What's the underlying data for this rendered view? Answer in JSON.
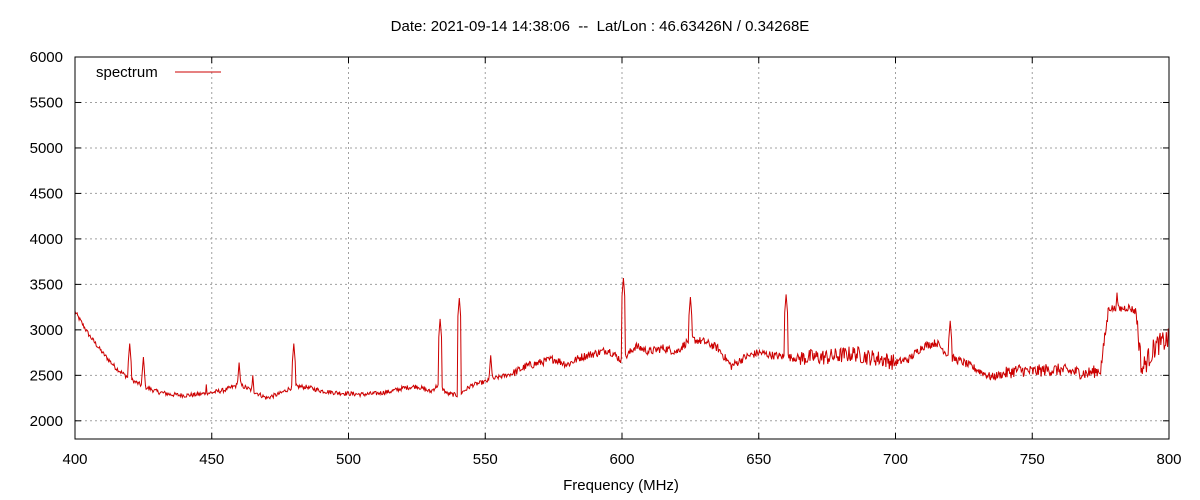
{
  "chart_data": {
    "type": "line",
    "title": "Date: 2021-09-14 14:38:06  --  Lat/Lon : 46.63426N / 0.34268E",
    "xlabel": "Frequency (MHz)",
    "ylabel": "",
    "xlim": [
      400,
      800
    ],
    "ylim": [
      1800,
      6000
    ],
    "xticks": [
      400,
      450,
      500,
      550,
      600,
      650,
      700,
      750,
      800
    ],
    "yticks": [
      2000,
      2500,
      3000,
      3500,
      4000,
      4500,
      5000,
      5500,
      6000
    ],
    "grid": true,
    "legend_position": "top-left",
    "series": [
      {
        "name": "spectrum",
        "color": "#cc0000",
        "x": [
          400,
          405,
          410,
          415,
          420,
          425,
          430,
          435,
          440,
          445,
          450,
          455,
          460,
          465,
          470,
          475,
          480,
          485,
          490,
          495,
          500,
          505,
          510,
          515,
          520,
          525,
          530,
          533,
          536,
          540,
          545,
          550,
          555,
          560,
          565,
          570,
          575,
          580,
          585,
          590,
          595,
          600,
          605,
          610,
          615,
          620,
          625,
          630,
          635,
          640,
          645,
          650,
          655,
          660,
          665,
          670,
          675,
          680,
          685,
          690,
          695,
          700,
          705,
          710,
          715,
          720,
          725,
          730,
          735,
          740,
          745,
          750,
          755,
          760,
          765,
          770,
          775,
          778,
          781,
          785,
          788,
          790,
          795,
          800
        ],
        "values": [
          3200,
          2950,
          2750,
          2580,
          2460,
          2380,
          2320,
          2290,
          2280,
          2290,
          2310,
          2340,
          2400,
          2330,
          2250,
          2300,
          2380,
          2370,
          2330,
          2310,
          2300,
          2290,
          2300,
          2320,
          2360,
          2380,
          2320,
          2400,
          2300,
          2280,
          2390,
          2430,
          2480,
          2520,
          2600,
          2640,
          2680,
          2620,
          2700,
          2740,
          2780,
          2660,
          2820,
          2760,
          2800,
          2760,
          2900,
          2870,
          2800,
          2600,
          2700,
          2750,
          2720,
          2700,
          2690,
          2700,
          2700,
          2720,
          2740,
          2700,
          2680,
          2640,
          2680,
          2820,
          2860,
          2700,
          2640,
          2560,
          2480,
          2520,
          2560,
          2540,
          2560,
          2560,
          2540,
          2520,
          2560,
          3250,
          3220,
          3250,
          3200,
          2560,
          2820,
          2900
        ],
        "peaks": [
          {
            "x": 420,
            "y": 2850
          },
          {
            "x": 425,
            "y": 2700
          },
          {
            "x": 448,
            "y": 2400
          },
          {
            "x": 460,
            "y": 2640
          },
          {
            "x": 465,
            "y": 2500
          },
          {
            "x": 480,
            "y": 2850
          },
          {
            "x": 533.5,
            "y": 3120
          },
          {
            "x": 540.5,
            "y": 3350
          },
          {
            "x": 552,
            "y": 2720
          },
          {
            "x": 600.5,
            "y": 3570
          },
          {
            "x": 625,
            "y": 3360
          },
          {
            "x": 660,
            "y": 3390
          },
          {
            "x": 720,
            "y": 3100
          },
          {
            "x": 781,
            "y": 3410
          }
        ]
      }
    ]
  }
}
